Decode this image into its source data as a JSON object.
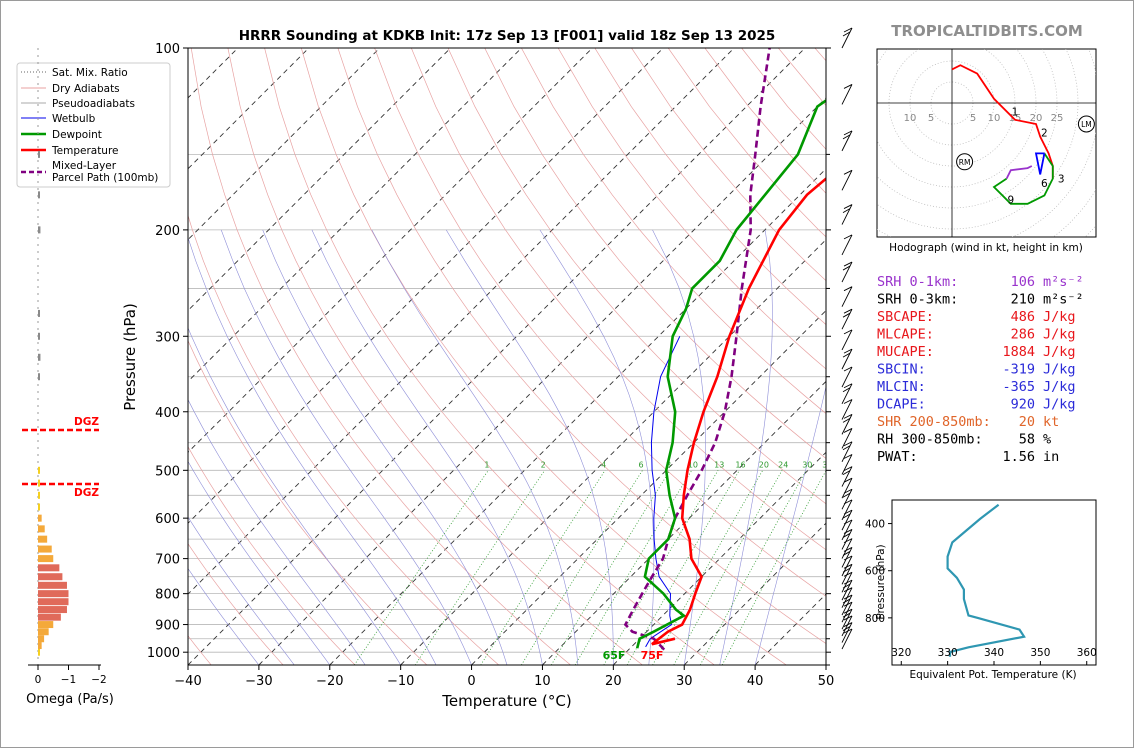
{
  "title": "HRRR Sounding at KDKB Init: 17z Sep 13 [F001] valid 18z Sep 13 2025",
  "brand": "TROPICALTIDBITS.COM",
  "skewt": {
    "xlabel": "Temperature (°C)",
    "ylabel": "Pressure (hPa)",
    "xticks": [
      -40,
      -30,
      -20,
      -10,
      0,
      10,
      20,
      30,
      40,
      50
    ],
    "yticks": [
      100,
      200,
      300,
      400,
      500,
      600,
      700,
      800,
      900,
      1000
    ],
    "mixing_ratio_labels": [
      "1",
      "2",
      "4",
      "6",
      "8",
      "10",
      "13",
      "16",
      "20",
      "24",
      "30",
      "36"
    ],
    "surface_dewpoint_label": "65F",
    "surface_temperature_label": "75F",
    "colors": {
      "temperature": "#ff0000",
      "dewpoint": "#009900",
      "wetbulb": "#0000ee",
      "parcel": "#800080"
    }
  },
  "legend": {
    "items": [
      "Sat. Mix. Ratio",
      "Dry Adiabats",
      "Pseudoadiabats",
      "Wetbulb",
      "Dewpoint",
      "Temperature",
      "Mixed-Layer Parcel Path (100mb)"
    ]
  },
  "omega": {
    "xlabel": "Omega (Pa/s)",
    "ticks": [
      "0",
      "−1",
      "−2"
    ],
    "dgz_label": "DGZ"
  },
  "hodograph": {
    "caption": "Hodograph (wind in kt, height in km)",
    "ring_labels": [
      "10",
      "5",
      "5",
      "10",
      "15",
      "20",
      "25"
    ],
    "height_labels": [
      "1",
      "2",
      "3",
      "6",
      "9"
    ],
    "markers": [
      "RM",
      "LM"
    ]
  },
  "indices": [
    {
      "label": "SRH 0-1km:",
      "value": "106",
      "unit": "m²s⁻²",
      "color": "#9933cc"
    },
    {
      "label": "SRH 0-3km:",
      "value": "210",
      "unit": "m²s⁻²",
      "color": "#000000"
    },
    {
      "label": "SBCAPE:",
      "value": "486",
      "unit": "J/kg",
      "color": "#e8161b"
    },
    {
      "label": "MLCAPE:",
      "value": "286",
      "unit": "J/kg",
      "color": "#e8161b"
    },
    {
      "label": "MUCAPE:",
      "value": "1884",
      "unit": "J/kg",
      "color": "#e8161b"
    },
    {
      "label": "SBCIN:",
      "value": "-319",
      "unit": "J/kg",
      "color": "#2a2ad8"
    },
    {
      "label": "MLCIN:",
      "value": "-365",
      "unit": "J/kg",
      "color": "#2a2ad8"
    },
    {
      "label": "DCAPE:",
      "value": "920",
      "unit": "J/kg",
      "color": "#2a2ad8"
    },
    {
      "label": "SHR 200-850mb:",
      "value": "20",
      "unit": "kt",
      "color": "#e0652a"
    },
    {
      "label": "RH 300-850mb:",
      "value": "58",
      "unit": "%",
      "color": "#000000"
    },
    {
      "label": "PWAT:",
      "value": "1.56",
      "unit": "in",
      "color": "#000000"
    }
  ],
  "theta_e_panel": {
    "xlabel": "Equivalent Pot. Temperature (K)",
    "ylabel": "Pressure (hPa)",
    "xticks": [
      320,
      330,
      340,
      350,
      360
    ],
    "yticks": [
      400,
      600,
      800
    ]
  },
  "chart_data": [
    {
      "type": "line",
      "name": "skew-t",
      "xlim": [
        -40,
        50
      ],
      "ylim": [
        1050,
        100
      ],
      "yscale": "log",
      "series": [
        {
          "name": "Temperature",
          "points": [
            [
              25,
              950
            ],
            [
              22.5,
              970
            ],
            [
              23,
              925
            ],
            [
              24,
              900
            ],
            [
              23,
              850
            ],
            [
              21.5,
              800
            ],
            [
              20,
              750
            ],
            [
              16,
              700
            ],
            [
              13,
              650
            ],
            [
              9,
              600
            ],
            [
              6,
              550
            ],
            [
              3,
              500
            ],
            [
              0,
              450
            ],
            [
              -3,
              400
            ],
            [
              -6,
              350
            ],
            [
              -10,
              300
            ],
            [
              -14,
              250
            ],
            [
              -18,
              200
            ],
            [
              -19,
              175
            ],
            [
              -18,
              150
            ],
            [
              -16,
              125
            ],
            [
              -13,
              110
            ],
            [
              -8,
              100
            ]
          ]
        },
        {
          "name": "Dewpoint",
          "points": [
            [
              21,
              985
            ],
            [
              20,
              950
            ],
            [
              21,
              925
            ],
            [
              23,
              870
            ],
            [
              21,
              850
            ],
            [
              17,
              800
            ],
            [
              12,
              750
            ],
            [
              10,
              700
            ],
            [
              10,
              650
            ],
            [
              8,
              600
            ],
            [
              4,
              550
            ],
            [
              0,
              500
            ],
            [
              -3,
              450
            ],
            [
              -7,
              400
            ],
            [
              -13,
              350
            ],
            [
              -18,
              300
            ],
            [
              -20,
              270
            ],
            [
              -22,
              250
            ],
            [
              -22,
              225
            ],
            [
              -24,
              200
            ],
            [
              -26,
              150
            ],
            [
              -30,
              125
            ],
            [
              -28,
              110
            ],
            [
              -26,
              100
            ]
          ]
        },
        {
          "name": "Wetbulb",
          "points": [
            [
              22,
              980
            ],
            [
              21.5,
              950
            ],
            [
              22,
              925
            ],
            [
              22.5,
              900
            ],
            [
              21,
              870
            ],
            [
              18,
              800
            ],
            [
              14,
              750
            ],
            [
              11,
              700
            ],
            [
              8,
              650
            ],
            [
              5,
              600
            ],
            [
              2,
              550
            ],
            [
              -2,
              500
            ],
            [
              -6,
              450
            ],
            [
              -10,
              400
            ],
            [
              -14,
              350
            ],
            [
              -17,
              300
            ]
          ]
        },
        {
          "name": "Parcel",
          "points": [
            [
              25,
              990
            ],
            [
              22,
              950
            ],
            [
              18,
              925
            ],
            [
              16,
              900
            ],
            [
              15,
              850
            ],
            [
              14,
              800
            ],
            [
              13,
              750
            ],
            [
              12,
              700
            ],
            [
              10,
              650
            ],
            [
              8,
              600
            ],
            [
              6.5,
              550
            ],
            [
              5,
              500
            ],
            [
              3,
              450
            ],
            [
              0,
              400
            ],
            [
              -4,
              350
            ],
            [
              -9,
              300
            ],
            [
              -15,
              250
            ],
            [
              -22,
              200
            ],
            [
              -27,
              175
            ],
            [
              -32,
              150
            ],
            [
              -38,
              125
            ],
            [
              -42,
              110
            ],
            [
              -45,
              100
            ]
          ]
        }
      ]
    },
    {
      "type": "bar",
      "name": "omega",
      "xlim": [
        0,
        -2
      ],
      "ylim": [
        1050,
        100
      ],
      "levels": [
        1000,
        975,
        950,
        925,
        900,
        875,
        850,
        825,
        800,
        775,
        750,
        725,
        700,
        675,
        650,
        625,
        600,
        575,
        550,
        525,
        500,
        350,
        325,
        300,
        275,
        200,
        175,
        150
      ],
      "values": [
        -0.05,
        -0.12,
        -0.2,
        -0.35,
        -0.5,
        -0.75,
        -0.95,
        -1.0,
        -1.0,
        -0.95,
        -0.8,
        -0.7,
        -0.5,
        -0.45,
        -0.3,
        -0.22,
        -0.12,
        -0.05,
        -0.03,
        -0.02,
        -0.02,
        -0.05,
        -0.08,
        -0.06,
        -0.03,
        -0.08,
        -0.02,
        -0.03
      ]
    },
    {
      "type": "line",
      "name": "hodograph",
      "points": [
        [
          0,
          -8
        ],
        [
          0,
          -8
        ],
        [
          2,
          -9
        ],
        [
          6,
          -7
        ],
        [
          10,
          -1
        ],
        [
          15,
          4
        ],
        [
          20,
          5
        ],
        [
          21,
          8
        ],
        [
          23,
          12
        ],
        [
          24,
          15
        ],
        [
          24,
          18
        ],
        [
          22,
          22
        ],
        [
          18,
          24
        ],
        [
          14,
          24
        ],
        [
          10,
          20
        ],
        [
          10,
          17
        ],
        [
          16,
          16
        ],
        [
          18,
          14
        ],
        [
          19,
          11
        ],
        [
          21,
          10
        ],
        [
          20,
          13
        ]
      ]
    },
    {
      "type": "line",
      "name": "theta-e",
      "xlim": [
        318,
        362
      ],
      "ylim": [
        1000,
        300
      ],
      "x": [
        330.5,
        330.5,
        334.5,
        346.5,
        345.5,
        336.5,
        334.5,
        333.5,
        333.5,
        332,
        330,
        330,
        331,
        334,
        337,
        341
      ],
      "y": [
        965,
        945,
        925,
        880,
        850,
        800,
        790,
        720,
        680,
        630,
        590,
        540,
        480,
        430,
        380,
        320
      ]
    }
  ]
}
